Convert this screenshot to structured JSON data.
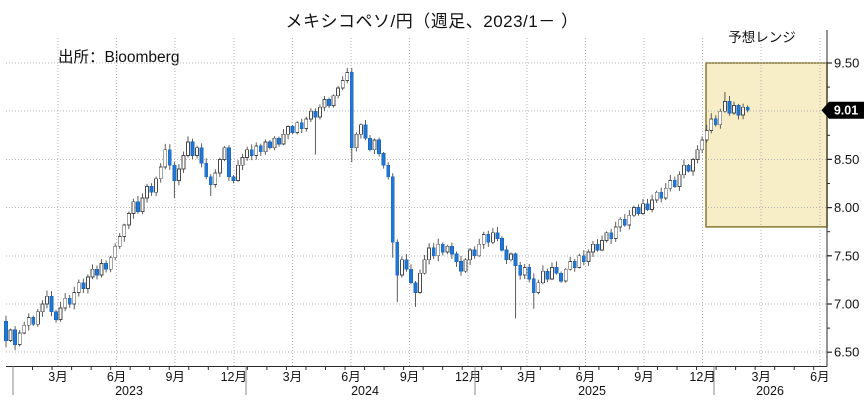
{
  "chart_data": {
    "type": "candlestick",
    "title": "メキシコペソ/円（週足、2023/1－ ）",
    "instrument": "メキシコペソ/円",
    "timeframe": "週足",
    "period_start": "2023/1",
    "source": "出所：Bloomberg",
    "forecast": {
      "label": "予想レンジ",
      "high": 9.5,
      "low": 7.8
    },
    "last_price_label": "9.01",
    "last_price": 9.01,
    "y_axis": {
      "min": 6.5,
      "max": 9.5,
      "tick_step": 0.5,
      "labels": [
        {
          "value": 9.5,
          "label": "9.50"
        },
        {
          "value": 8.5,
          "label": "8.50"
        },
        {
          "value": 8.0,
          "label": "8.00"
        },
        {
          "value": 7.5,
          "label": "7.50"
        },
        {
          "value": 7.0,
          "label": "7.00"
        },
        {
          "value": 6.5,
          "label": "6.50"
        }
      ]
    },
    "x_axis": {
      "month_labels": [
        "3月",
        "6月",
        "9月",
        "12月",
        "3月",
        "6月",
        "9月",
        "12月",
        "3月",
        "6月",
        "9月",
        "12月",
        "3月",
        "6月"
      ],
      "year_labels": [
        "2023",
        "2024",
        "2025",
        "2026"
      ]
    },
    "colors": {
      "up": "#ffffff",
      "down": "#2077d4",
      "down_stroke": "#1b69bd",
      "outline": "#4a4a4a",
      "grid": "#b3b3b3",
      "axis": "#2b2b2b",
      "forecast_fill": "#f7eec7",
      "forecast_border": "#8f7f3a",
      "badge_bg": "#000000",
      "badge_text": "#ffffff"
    },
    "first_open": 6.82,
    "closes": [
      6.62,
      6.73,
      6.58,
      6.7,
      6.78,
      6.86,
      6.79,
      6.92,
      7.0,
      7.08,
      6.92,
      6.84,
      6.96,
      7.06,
      7.0,
      7.12,
      7.22,
      7.16,
      7.28,
      7.36,
      7.3,
      7.42,
      7.36,
      7.48,
      7.6,
      7.7,
      7.82,
      7.94,
      8.06,
      7.96,
      8.1,
      8.22,
      8.16,
      8.3,
      8.42,
      8.6,
      8.44,
      8.28,
      8.4,
      8.54,
      8.68,
      8.54,
      8.62,
      8.46,
      8.32,
      8.24,
      8.36,
      8.5,
      8.62,
      8.32,
      8.28,
      8.44,
      8.52,
      8.6,
      8.54,
      8.64,
      8.58,
      8.68,
      8.62,
      8.72,
      8.66,
      8.76,
      8.84,
      8.78,
      8.88,
      8.82,
      8.92,
      9.0,
      8.94,
      9.04,
      9.12,
      9.06,
      9.16,
      9.24,
      9.32,
      9.4,
      8.62,
      8.76,
      8.86,
      8.72,
      8.6,
      8.7,
      8.56,
      8.44,
      8.32,
      7.64,
      7.3,
      7.46,
      7.36,
      7.22,
      7.12,
      7.32,
      7.46,
      7.58,
      7.5,
      7.62,
      7.54,
      7.6,
      7.52,
      7.44,
      7.34,
      7.46,
      7.56,
      7.5,
      7.62,
      7.72,
      7.64,
      7.74,
      7.68,
      7.56,
      7.46,
      7.52,
      7.4,
      7.3,
      7.38,
      7.26,
      7.12,
      7.22,
      7.34,
      7.26,
      7.38,
      7.32,
      7.24,
      7.36,
      7.44,
      7.38,
      7.5,
      7.44,
      7.54,
      7.62,
      7.56,
      7.66,
      7.74,
      7.68,
      7.8,
      7.88,
      7.82,
      7.92,
      8.0,
      7.94,
      8.04,
      7.98,
      8.08,
      8.16,
      8.1,
      8.2,
      8.28,
      8.22,
      8.34,
      8.44,
      8.38,
      8.5,
      8.6,
      8.7,
      8.8,
      8.92,
      8.86,
      9.0,
      9.1,
      8.98,
      9.06,
      8.96,
      9.04,
      9.01
    ],
    "wick_overrides": {
      "0": {
        "low": 6.55
      },
      "2": {
        "low": 6.52
      },
      "37": {
        "low": 8.1
      },
      "45": {
        "low": 8.12
      },
      "68": {
        "low": 8.55
      },
      "75": {
        "high": 9.45
      },
      "76": {
        "low": 8.47
      },
      "85": {
        "low": 7.48
      },
      "86": {
        "low": 7.02
      },
      "90": {
        "low": 6.97
      },
      "112": {
        "low": 6.85
      },
      "116": {
        "low": 6.95
      },
      "158": {
        "high": 9.2
      }
    }
  }
}
